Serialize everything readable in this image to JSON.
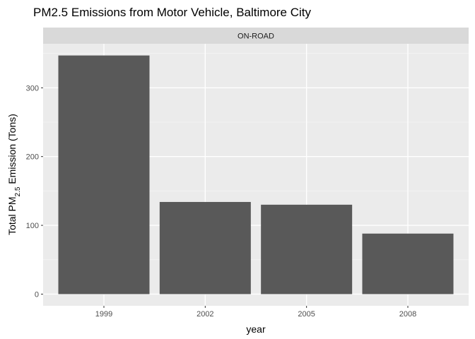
{
  "colors": {
    "panel": "#EBEBEB",
    "strip": "#D9D9D9",
    "grid_major": "#FFFFFF",
    "grid_minor": "#F5F5F5",
    "bar": "#595959",
    "tick": "#333333"
  },
  "chart_data": {
    "type": "bar",
    "title": "PM2.5 Emissions from Motor Vehicle, Baltimore City",
    "facet": "ON-ROAD",
    "categories": [
      "1999",
      "2002",
      "2005",
      "2008"
    ],
    "values": [
      347,
      134,
      130,
      88
    ],
    "xlabel": "year",
    "ylabel": {
      "prefix": "Total PM",
      "subscript": "2.5",
      "suffix": " Emission (Tons)"
    },
    "ylim": [
      -17,
      364
    ],
    "yticks": [
      0,
      100,
      200,
      300
    ],
    "yticklabels": [
      "0",
      "100",
      "200",
      "300"
    ],
    "grid": true,
    "legend": "none"
  }
}
